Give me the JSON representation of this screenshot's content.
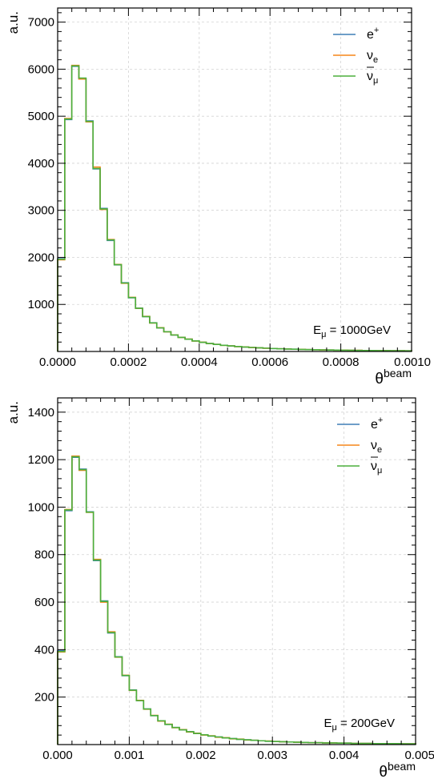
{
  "chart_data": [
    {
      "type": "line",
      "ylabel": "a.u.",
      "xlabel_base": "θ",
      "xlabel_sup": "beam",
      "annotation": {
        "base": "E",
        "sub": "μ",
        "text": " = 1000GeV"
      },
      "xlim": [
        0,
        0.001
      ],
      "ylim": [
        0,
        7300
      ],
      "x_ticks": [
        "0.0000",
        "0.0002",
        "0.0004",
        "0.0006",
        "0.0008",
        "0.0010"
      ],
      "y_ticks": [
        "1000",
        "2000",
        "3000",
        "4000",
        "5000",
        "6000",
        "7000"
      ],
      "grid": true,
      "legend_position": "top-right",
      "legend": [
        {
          "base": "e",
          "sup": "+",
          "sub": "",
          "bar": false
        },
        {
          "base": "ν",
          "sup": "",
          "sub": "e",
          "bar": false
        },
        {
          "base": "ν",
          "sup": "",
          "sub": "μ",
          "bar": true
        }
      ],
      "colors": [
        "#3f7fb5",
        "#f58518",
        "#4caf3c"
      ],
      "bin_edges": [
        0,
        2e-05,
        4e-05,
        6e-05,
        8e-05,
        0.0001,
        0.00012,
        0.00014,
        0.00016,
        0.00018,
        0.0002,
        0.00022,
        0.00024,
        0.00026,
        0.00028,
        0.0003,
        0.00032,
        0.00034,
        0.00036,
        0.00038,
        0.0004,
        0.00042,
        0.00044,
        0.00046,
        0.00048,
        0.0005,
        0.00052,
        0.00054,
        0.00056,
        0.00058,
        0.0006,
        0.00062,
        0.00064,
        0.00066,
        0.00068,
        0.0007,
        0.00072,
        0.00074,
        0.00076,
        0.00078,
        0.0008,
        0.00082,
        0.00084,
        0.00086,
        0.00088,
        0.0009,
        0.00092,
        0.00094,
        0.00096,
        0.00098,
        0.001
      ],
      "series": [
        {
          "values": [
            1970,
            4930,
            6060,
            5800,
            4900,
            3880,
            3040,
            2360,
            1840,
            1460,
            1140,
            920,
            740,
            610,
            500,
            420,
            350,
            300,
            260,
            225,
            195,
            170,
            150,
            132,
            118,
            105,
            95,
            85,
            77,
            70,
            63,
            57,
            52,
            48,
            44,
            40,
            37,
            34,
            31,
            29,
            27,
            25,
            23,
            21,
            20,
            19,
            18,
            17,
            16,
            15
          ]
        },
        {
          "values": [
            1950,
            4950,
            6080,
            5790,
            4880,
            3920,
            3020,
            2380,
            1850,
            1450,
            1150,
            915,
            745,
            605,
            505,
            418,
            352,
            298,
            262,
            223,
            196,
            168,
            151,
            130,
            119,
            104,
            96,
            84,
            78,
            69,
            64,
            56,
            53,
            47,
            45,
            39,
            38,
            33,
            32,
            28,
            28,
            24,
            24,
            20,
            21,
            18,
            19,
            16,
            17,
            14
          ]
        },
        {
          "values": [
            1960,
            4940,
            6070,
            5810,
            4890,
            3890,
            3030,
            2370,
            1845,
            1455,
            1145,
            918,
            742,
            608,
            502,
            419,
            351,
            299,
            261,
            224,
            195,
            169,
            150,
            131,
            118,
            105,
            95,
            85,
            77,
            70,
            63,
            57,
            52,
            48,
            44,
            40,
            37,
            34,
            31,
            29,
            27,
            25,
            23,
            21,
            20,
            19,
            18,
            17,
            16,
            15
          ]
        }
      ]
    },
    {
      "type": "line",
      "ylabel": "a.u.",
      "xlabel_base": "θ",
      "xlabel_sup": "beam",
      "annotation": {
        "base": "E",
        "sub": "μ",
        "text": " = 200GeV"
      },
      "xlim": [
        0,
        0.005
      ],
      "ylim": [
        0,
        1460
      ],
      "x_ticks": [
        "0.000",
        "0.001",
        "0.002",
        "0.003",
        "0.004",
        "0.005"
      ],
      "y_ticks": [
        "200",
        "400",
        "600",
        "800",
        "1000",
        "1200",
        "1400"
      ],
      "grid": true,
      "legend_position": "top-right",
      "legend": [
        {
          "base": "e",
          "sup": "+",
          "sub": "",
          "bar": false
        },
        {
          "base": "ν",
          "sup": "",
          "sub": "e",
          "bar": false
        },
        {
          "base": "ν",
          "sup": "",
          "sub": "μ",
          "bar": true
        }
      ],
      "colors": [
        "#3f7fb5",
        "#f58518",
        "#4caf3c"
      ],
      "bin_edges": [
        0,
        0.0001,
        0.0002,
        0.0003,
        0.0004,
        0.0005,
        0.0006,
        0.0007,
        0.0008,
        0.0009,
        0.001,
        0.0011,
        0.0012,
        0.0013,
        0.0014,
        0.0015,
        0.0016,
        0.0017,
        0.0018,
        0.0019,
        0.002,
        0.0021,
        0.0022,
        0.0023,
        0.0024,
        0.0025,
        0.0026,
        0.0027,
        0.0028,
        0.0029,
        0.003,
        0.0031,
        0.0032,
        0.0033,
        0.0034,
        0.0035,
        0.0036,
        0.0037,
        0.0038,
        0.0039,
        0.004,
        0.0041,
        0.0042,
        0.0043,
        0.0044,
        0.0045,
        0.0046,
        0.0047,
        0.0048,
        0.0049,
        0.005
      ],
      "series": [
        {
          "values": [
            395,
            985,
            1210,
            1160,
            980,
            775,
            605,
            470,
            370,
            290,
            230,
            185,
            150,
            122,
            100,
            85,
            72,
            62,
            54,
            47,
            41,
            36,
            32,
            28,
            25,
            22,
            20,
            18,
            16,
            14,
            13,
            12,
            11,
            10,
            9,
            8,
            8,
            7,
            7,
            6,
            6,
            5,
            5,
            5,
            4,
            4,
            4,
            4,
            3,
            3
          ]
        },
        {
          "values": [
            390,
            990,
            1215,
            1155,
            978,
            780,
            600,
            475,
            368,
            292,
            228,
            186,
            149,
            123,
            99,
            86,
            71,
            63,
            53,
            48,
            40,
            37,
            31,
            29,
            24,
            23,
            19,
            18,
            16,
            15,
            13,
            12,
            11,
            10,
            9,
            8,
            8,
            7,
            7,
            6,
            6,
            5,
            5,
            5,
            4,
            4,
            4,
            4,
            3,
            3
          ]
        },
        {
          "values": [
            392,
            988,
            1212,
            1158,
            979,
            777,
            603,
            472,
            369,
            291,
            229,
            185,
            150,
            122,
            100,
            85,
            72,
            62,
            54,
            47,
            41,
            36,
            32,
            28,
            25,
            22,
            20,
            18,
            16,
            14,
            13,
            12,
            11,
            10,
            9,
            8,
            8,
            7,
            7,
            6,
            6,
            5,
            5,
            5,
            4,
            4,
            4,
            4,
            3,
            3
          ]
        }
      ]
    }
  ]
}
